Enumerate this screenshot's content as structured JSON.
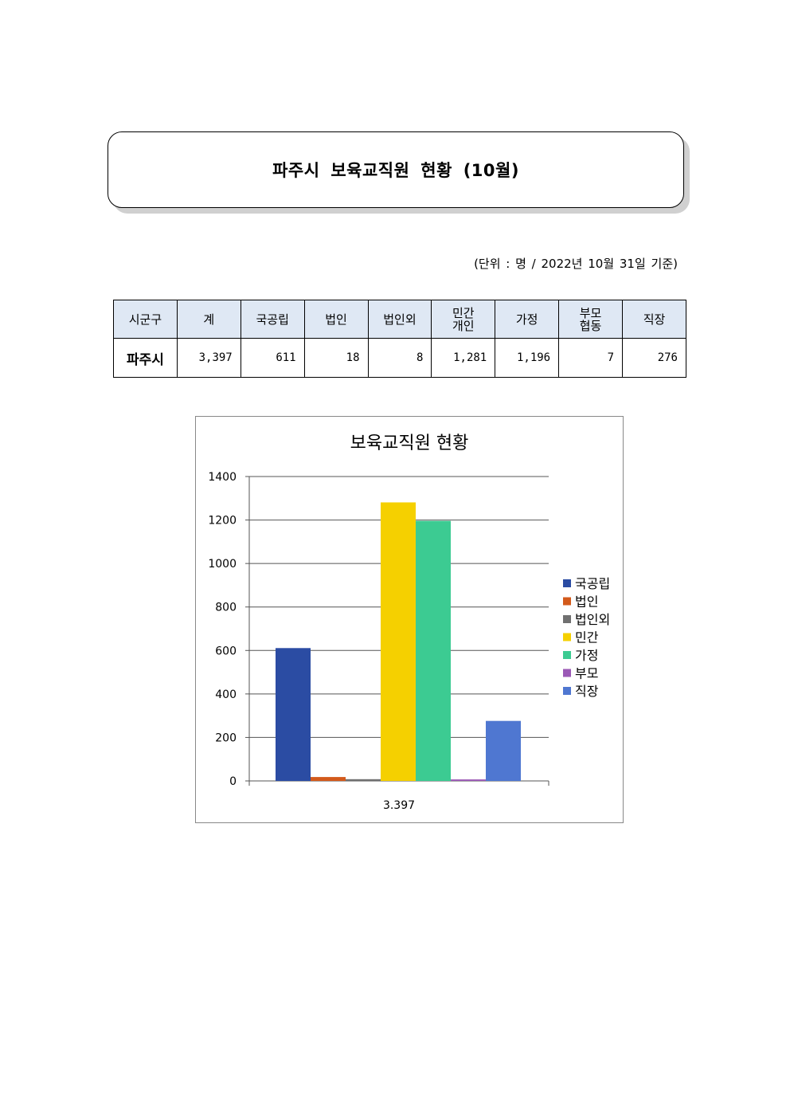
{
  "doc_title": "파주시 보육교직원 현황 (10월)",
  "unit_note": "(단위 : 명 / 2022년 10월 31일 기준)",
  "table": {
    "headers": [
      "시군구",
      "계",
      "국공립",
      "법인",
      "법인외",
      "민간\n개인",
      "가정",
      "부모\n협동",
      "직장"
    ],
    "rows": [
      [
        "파주시",
        "3,397",
        "611",
        "18",
        "8",
        "1,281",
        "1,196",
        "7",
        "276"
      ]
    ]
  },
  "chart_data": {
    "type": "bar",
    "title": "보육교직원 현황",
    "categories": [
      "3.397"
    ],
    "series": [
      {
        "name": "국공립",
        "values": [
          611
        ],
        "color": "#2b4ca3"
      },
      {
        "name": "법인",
        "values": [
          18
        ],
        "color": "#d35a1b"
      },
      {
        "name": "법인외",
        "values": [
          8
        ],
        "color": "#707070"
      },
      {
        "name": "민간",
        "values": [
          1281
        ],
        "color": "#f5d000"
      },
      {
        "name": "가정",
        "values": [
          1196
        ],
        "color": "#3ccb92"
      },
      {
        "name": "부모",
        "values": [
          7
        ],
        "color": "#9b59b6"
      },
      {
        "name": "직장",
        "values": [
          276
        ],
        "color": "#4f77d1"
      }
    ],
    "ylim": [
      0,
      1400
    ],
    "yticks": [
      "0",
      "200",
      "400",
      "600",
      "800",
      "1000",
      "1200",
      "1400"
    ],
    "grid": true,
    "legend": "right"
  }
}
